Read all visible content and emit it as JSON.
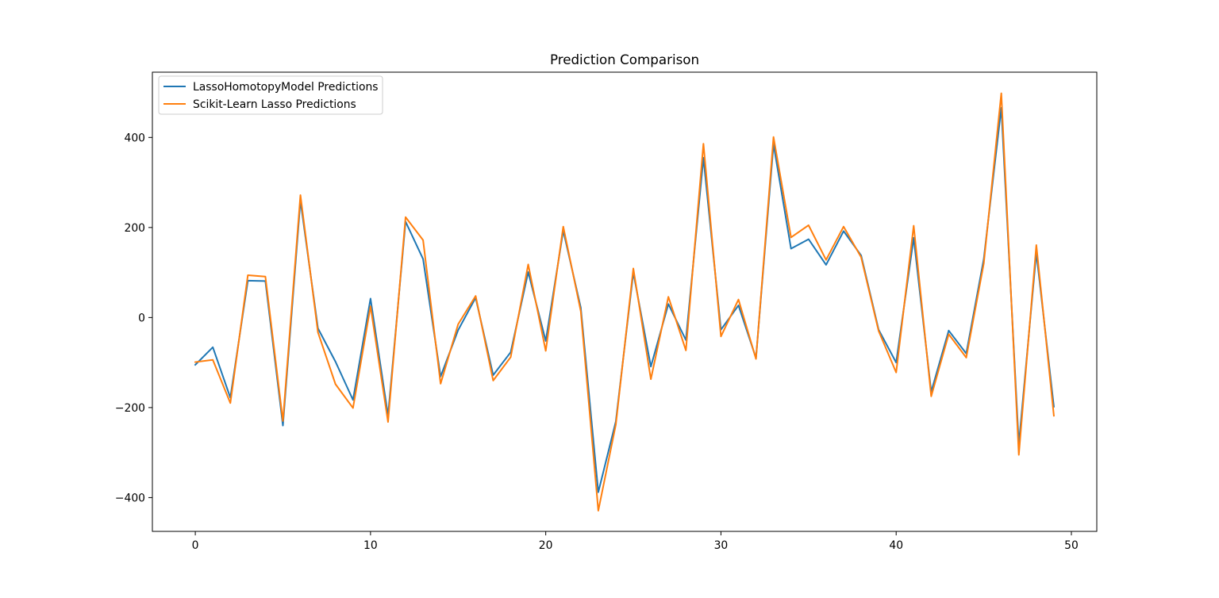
{
  "chart_data": {
    "type": "line",
    "title": "Prediction Comparison",
    "xlabel": "",
    "ylabel": "",
    "xlim": [
      -2.45,
      51.45
    ],
    "ylim": [
      -475,
      545
    ],
    "xticks": [
      0,
      10,
      20,
      30,
      40,
      50
    ],
    "yticks": [
      -400,
      -200,
      0,
      200,
      400
    ],
    "tick_labels": {
      "x": [
        "0",
        "10",
        "20",
        "30",
        "40",
        "50"
      ],
      "y": [
        "−400",
        "−200",
        "0",
        "200",
        "400"
      ]
    },
    "grid": false,
    "legend_position": "top-left",
    "x": [
      0,
      1,
      2,
      3,
      4,
      5,
      6,
      7,
      8,
      9,
      10,
      11,
      12,
      13,
      14,
      15,
      16,
      17,
      18,
      19,
      20,
      21,
      22,
      23,
      24,
      25,
      26,
      27,
      28,
      29,
      30,
      31,
      32,
      33,
      34,
      35,
      36,
      37,
      38,
      39,
      40,
      41,
      42,
      43,
      44,
      45,
      46,
      47,
      48,
      49
    ],
    "series": [
      {
        "name": "LassoHomotopyModel Predictions",
        "color": "#1f77b4",
        "values": [
          -105,
          -66,
          -178,
          82,
          81,
          -240,
          260,
          -24,
          -98,
          -183,
          42,
          -218,
          213,
          130,
          -131,
          -28,
          44,
          -128,
          -77,
          101,
          -52,
          193,
          22,
          -388,
          -231,
          100,
          -109,
          30,
          -50,
          355,
          -27,
          27,
          -90,
          385,
          153,
          174,
          117,
          192,
          138,
          -27,
          -100,
          177,
          -165,
          -29,
          -80,
          130,
          466,
          -282,
          144,
          -198
        ],
        "values_note": ""
      },
      {
        "name": "Scikit-Learn Lasso Predictions",
        "color": "#ff7f0e",
        "values": [
          -99,
          -94,
          -190,
          94,
          91,
          -230,
          272,
          -33,
          -148,
          -201,
          25,
          -232,
          223,
          172,
          -147,
          -15,
          48,
          -140,
          -88,
          118,
          -74,
          202,
          14,
          -429,
          -238,
          109,
          -137,
          46,
          -73,
          386,
          -42,
          40,
          -92,
          401,
          178,
          205,
          128,
          202,
          134,
          -30,
          -122,
          204,
          -175,
          -37,
          -89,
          120,
          498,
          -305,
          161,
          -218
        ]
      }
    ]
  }
}
